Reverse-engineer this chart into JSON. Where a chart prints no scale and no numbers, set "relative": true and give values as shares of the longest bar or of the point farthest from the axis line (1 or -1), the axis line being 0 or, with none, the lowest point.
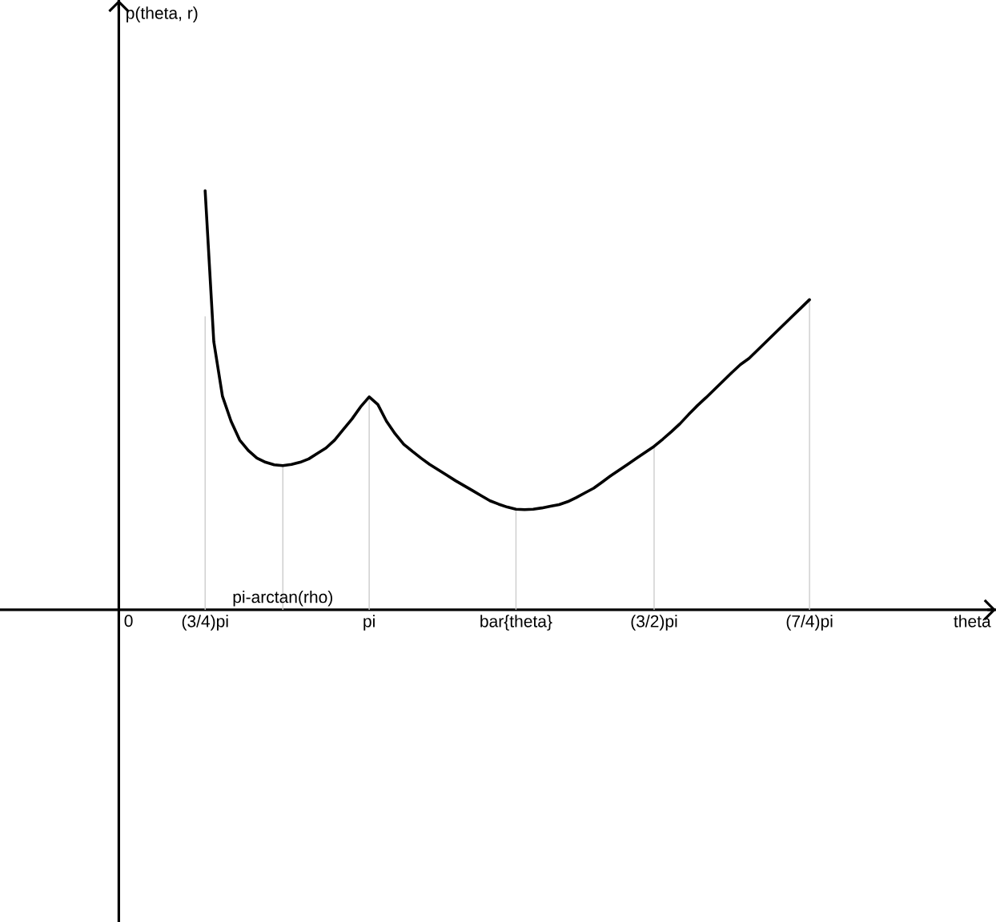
{
  "chart_data": {
    "type": "line",
    "relative": true,
    "annotations": [
      "p(theta, r)",
      "theta"
    ],
    "categories": [
      "0",
      null,
      null,
      null,
      null,
      null,
      null,
      null,
      null,
      null,
      "(3/4)pi",
      null,
      null,
      null,
      null,
      null,
      null,
      null,
      null,
      "pi-arctan(rho)",
      null,
      null,
      null,
      null,
      null,
      null,
      null,
      null,
      null,
      "pi",
      null,
      null,
      null,
      null,
      null,
      null,
      null,
      null,
      null,
      null,
      null,
      null,
      null,
      null,
      null,
      null,
      "bar{theta}",
      null,
      null,
      null,
      null,
      null,
      null,
      null,
      null,
      null,
      null,
      null,
      null,
      null,
      null,
      null,
      "(3/2)pi",
      null,
      null,
      null,
      null,
      null,
      null,
      null,
      null,
      null,
      null,
      null,
      null,
      null,
      null,
      null,
      null,
      null,
      "(7/4)pi"
    ],
    "series": [
      {
        "color": "#000000",
        "values": [
          null,
          null,
          null,
          null,
          null,
          null,
          null,
          null,
          null,
          null,
          1.0,
          0.64,
          0.51,
          0.45,
          0.405,
          0.38,
          0.362,
          0.352,
          0.346,
          0.344,
          0.347,
          0.352,
          0.36,
          0.373,
          0.386,
          0.405,
          0.43,
          0.455,
          0.484,
          0.508,
          0.49,
          0.45,
          0.42,
          0.395,
          0.378,
          0.362,
          0.347,
          0.334,
          0.321,
          0.308,
          0.296,
          0.284,
          0.272,
          0.26,
          0.252,
          0.245,
          0.24,
          0.239,
          0.24,
          0.243,
          0.247,
          0.251,
          0.258,
          0.268,
          0.279,
          0.29,
          0.305,
          0.32,
          0.334,
          0.348,
          0.362,
          0.376,
          0.39,
          0.407,
          0.425,
          0.444,
          0.466,
          0.487,
          0.506,
          0.526,
          0.546,
          0.566,
          0.585,
          0.6,
          0.62,
          0.64,
          0.66,
          0.68,
          0.7,
          0.72,
          0.74
        ]
      },
      {
        "type": "bar",
        "color": "#cccccc",
        "values": [
          null,
          null,
          null,
          null,
          null,
          null,
          null,
          null,
          null,
          null,
          0.7,
          null,
          null,
          null,
          null,
          null,
          null,
          null,
          null,
          0.344,
          null,
          null,
          null,
          null,
          null,
          null,
          null,
          null,
          null,
          0.508,
          null,
          null,
          null,
          null,
          null,
          null,
          null,
          null,
          null,
          null,
          null,
          null,
          null,
          null,
          null,
          null,
          0.24,
          null,
          null,
          null,
          null,
          null,
          null,
          null,
          null,
          null,
          null,
          null,
          null,
          null,
          null,
          null,
          0.39,
          null,
          null,
          null,
          null,
          null,
          null,
          null,
          null,
          null,
          null,
          null,
          null,
          null,
          null,
          null,
          null,
          null,
          0.74
        ]
      }
    ]
  }
}
